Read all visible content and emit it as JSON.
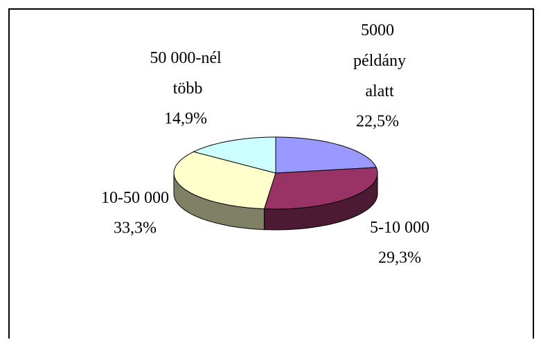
{
  "chart_data": {
    "type": "pie3d",
    "categories": [
      "5000 példány alatt",
      "5-10 000",
      "10-50 000",
      "50 000-nél több"
    ],
    "values": [
      22.5,
      29.3,
      33.3,
      14.9
    ],
    "value_labels": [
      "22,5%",
      "29,3%",
      "33,3%",
      "14,9%"
    ],
    "colors": [
      "#9999ff",
      "#993366",
      "#ffffcc",
      "#ccffff"
    ]
  }
}
